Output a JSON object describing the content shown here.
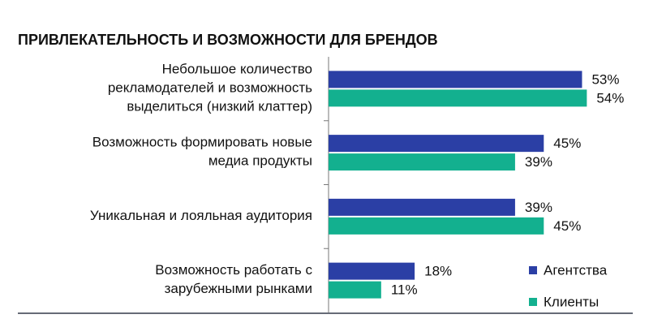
{
  "chart_data": {
    "type": "hbar",
    "title": "ПРИВЛЕКАТЕЛЬНОСТЬ И ВОЗМОЖНОСТИ ДЛЯ БРЕНДОВ",
    "categories": [
      "Небольшое количество\nрекламодателей и возможность\nвыделиться (низкий клаттер)",
      "Возможность формировать новые\nмедиа продукты",
      "Уникальная и лояльная аудитория",
      "Возможность работать с\nзарубежными рынками"
    ],
    "series": [
      {
        "name": "Агентства",
        "color": "#2b3fa5",
        "values": [
          53,
          45,
          39,
          18
        ],
        "value_labels": [
          "53%",
          "45%",
          "39%",
          "18%"
        ]
      },
      {
        "name": "Клиенты",
        "color": "#13b08f",
        "values": [
          54,
          39,
          45,
          11
        ],
        "value_labels": [
          "54%",
          "39%",
          "45%",
          "11%"
        ]
      }
    ],
    "xlim": [
      0,
      67
    ],
    "legend": "bottom-right"
  }
}
